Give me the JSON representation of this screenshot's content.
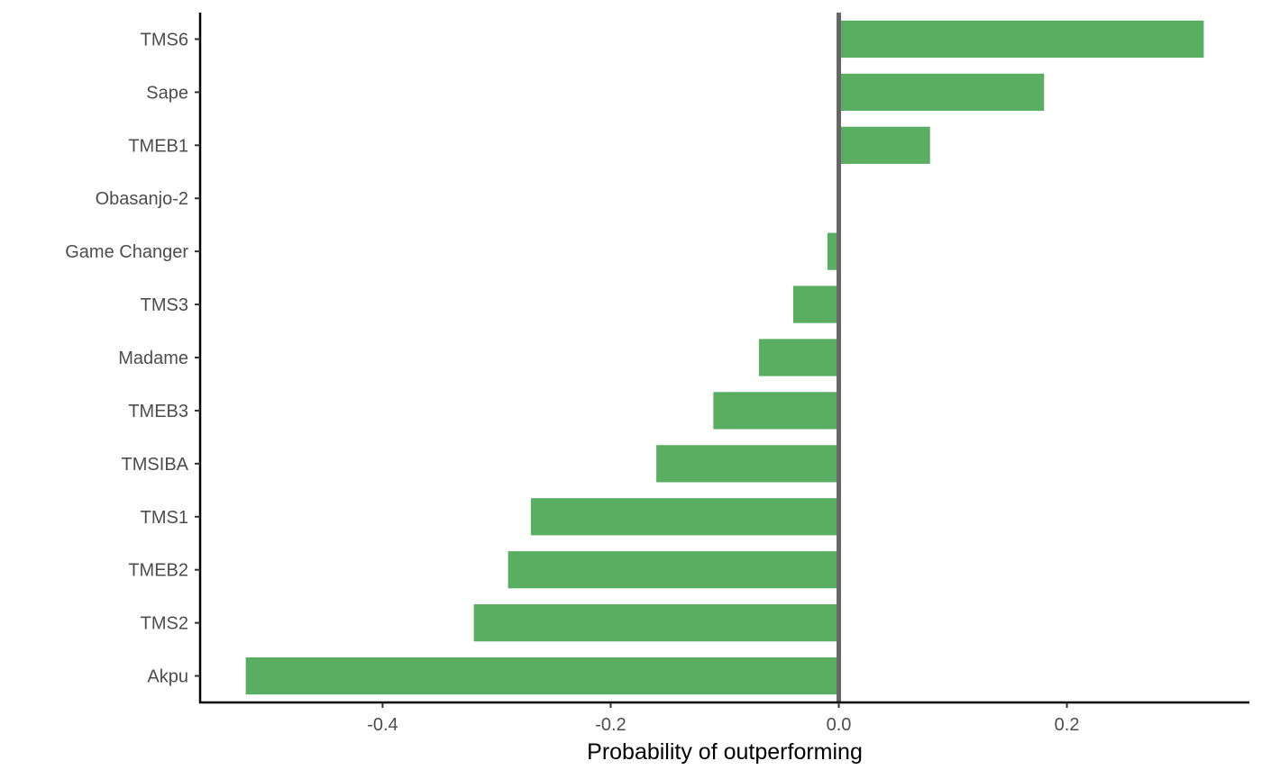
{
  "chart_data": {
    "type": "bar",
    "orientation": "horizontal",
    "title": "",
    "xlabel": "Probability of outperforming",
    "ylabel": "",
    "categories": [
      "TMS6",
      "Sape",
      "TMEB1",
      "Obasanjo-2",
      "Game Changer",
      "TMS3",
      "Madame",
      "TMEB3",
      "TMSIBA",
      "TMS1",
      "TMEB2",
      "TMS2",
      "Akpu"
    ],
    "values": [
      0.32,
      0.18,
      0.08,
      0.0,
      -0.01,
      -0.04,
      -0.07,
      -0.11,
      -0.16,
      -0.27,
      -0.29,
      -0.32,
      -0.52
    ],
    "xlim": [
      -0.56,
      0.36
    ],
    "xticks": [
      -0.4,
      -0.2,
      0.0,
      0.2
    ],
    "xtick_labels": [
      "-0.4",
      "-0.2",
      "0.0",
      "0.2"
    ],
    "reference_line_x": 0.0,
    "grid": false,
    "legend": "none",
    "colors": {
      "bar": "#59ae61",
      "reference_line": "#666666",
      "axis": "#000000"
    }
  }
}
